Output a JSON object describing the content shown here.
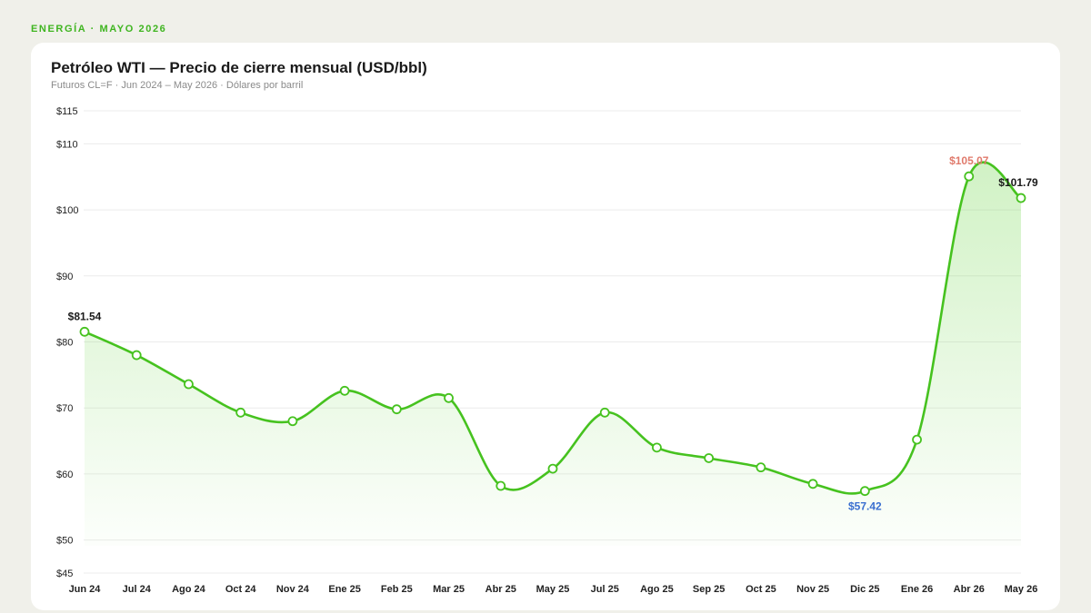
{
  "eyebrow": "ENERGÍA · MAYO 2026",
  "chart_data": {
    "type": "line",
    "title": "Petróleo WTI — Precio de cierre mensual (USD/bbl)",
    "subtitle": "Futuros CL=F · Jun 2024 – May 2026 · Dólares por barril",
    "xlabel": "",
    "ylabel": "",
    "ylim": [
      45,
      115
    ],
    "yticks": [
      45,
      50,
      60,
      70,
      80,
      90,
      100,
      110,
      115
    ],
    "ytick_prefix": "$",
    "grid": true,
    "categories": [
      "Jun 24",
      "Jul 24",
      "Ago 24",
      "Oct 24",
      "Nov 24",
      "Ene 25",
      "Feb 25",
      "Mar 25",
      "Abr 25",
      "May 25",
      "Jul 25",
      "Ago 25",
      "Sep 25",
      "Oct 25",
      "Nov 25",
      "Dic 25",
      "Ene 26",
      "Abr 26",
      "May 26"
    ],
    "series": [
      {
        "values": [
          81.54,
          78.0,
          73.6,
          69.3,
          68.0,
          72.6,
          69.8,
          71.5,
          58.2,
          60.8,
          69.3,
          64.0,
          62.4,
          61.0,
          58.5,
          57.42,
          65.2,
          105.07,
          101.79
        ]
      }
    ],
    "annotations": [
      {
        "index": 0,
        "text": "$81.54",
        "color": "#1a1a1a",
        "position": "above"
      },
      {
        "index": 15,
        "text": "$57.42",
        "color": "#3a6fd0",
        "position": "below"
      },
      {
        "index": 17,
        "text": "$105.07",
        "color": "#e07a6c",
        "position": "above"
      },
      {
        "index": 18,
        "text": "$101.79",
        "color": "#1a1a1a",
        "position": "above"
      }
    ],
    "colors": {
      "line": "#46c21f",
      "fill": "#6fd64a",
      "grid": "#ececec"
    }
  }
}
